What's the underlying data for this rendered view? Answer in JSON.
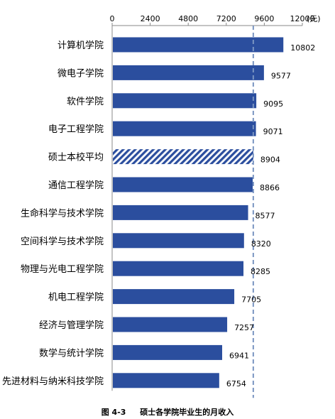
{
  "chart_data": {
    "type": "bar",
    "orientation": "horizontal",
    "categories": [
      "计算机学院",
      "微电子学院",
      "软件学院",
      "电子工程学院",
      "硕士本校平均",
      "通信工程学院",
      "生命科学与技术学院",
      "空间科学与技术学院",
      "物理与光电工程学院",
      "机电工程学院",
      "经济与管理学院",
      "数学与统计学院",
      "先进材料与纳米科技学院"
    ],
    "values": [
      10802,
      9577,
      9095,
      9071,
      8904,
      8866,
      8577,
      8320,
      8285,
      7705,
      7257,
      6941,
      6754
    ],
    "highlight_category": "硕士本校平均",
    "reference_line": 8904,
    "xlim": [
      0,
      12000
    ],
    "ticks": [
      "0",
      "2400",
      "4800",
      "7200",
      "9600",
      "12000"
    ],
    "unit": "(元)",
    "colors": {
      "bar": "#2B4E9E",
      "hatch": "#2B4E9E",
      "reference_line": "#7A95C2"
    },
    "grid": false,
    "legend": "none"
  },
  "caption": {
    "number": "图 4-3",
    "text": "硕士各学院毕业生的月收入"
  }
}
